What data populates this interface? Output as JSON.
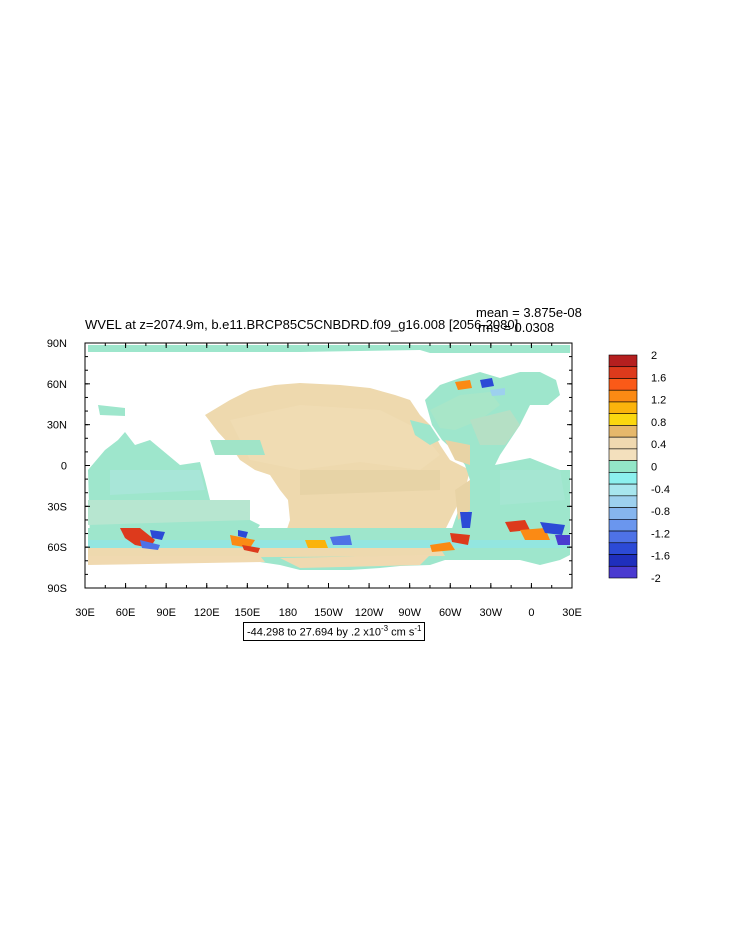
{
  "title": "WVEL at z=2074.9m, b.e11.BRCP85C5CNBDRD.f09_g16.008 [2056-2080]",
  "stats": {
    "mean": "mean = 3.875e-08",
    "rms": "rms = 0.0308"
  },
  "axes": {
    "x_ticks": [
      "30E",
      "60E",
      "90E",
      "120E",
      "150E",
      "180",
      "150W",
      "120W",
      "90W",
      "60W",
      "30W",
      "0",
      "30E"
    ],
    "y_ticks": [
      "90N",
      "60N",
      "30N",
      "0",
      "30S",
      "60S",
      "90S"
    ]
  },
  "colorbar": {
    "labels": [
      "2",
      "1.6",
      "1.2",
      "0.8",
      "0.4",
      "0",
      "-0.4",
      "-0.8",
      "-1.2",
      "-1.6",
      "-2"
    ],
    "colors": [
      "#b51f1f",
      "#dd3a1c",
      "#fa5a18",
      "#fb8a14",
      "#fbb30c",
      "#fbd70f",
      "#e6b86b",
      "#f0d9b0",
      "#f3e0bd",
      "#93e6c8",
      "#8cf0ee",
      "#a8e6ee",
      "#9dd0ee",
      "#86b5ee",
      "#6a96ee",
      "#4e72e6",
      "#2c4ad6",
      "#1f2fbd",
      "#4a3ad0"
    ]
  },
  "units": {
    "prefix": "-44.298 to 27.694 by .2 x10",
    "exp": "-3",
    "suffix": " cm s",
    "exp2": "-1"
  }
}
